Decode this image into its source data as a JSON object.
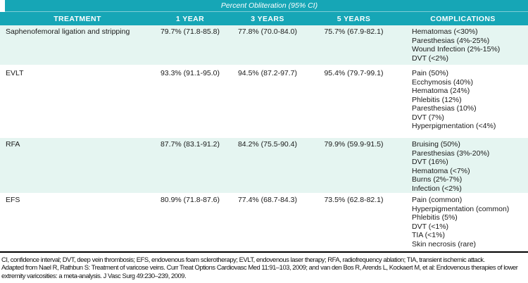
{
  "table": {
    "title": "Percent Obliteration (95% CI)",
    "columns": [
      "TREATMENT",
      "1 YEAR",
      "3 YEARS",
      "5 YEARS",
      "COMPLICATIONS"
    ],
    "rows": [
      {
        "treatment": "Saphenofemoral ligation and stripping",
        "year1": "79.7% (71.8-85.8)",
        "year3": "77.8% (70.0-84.0)",
        "year5": "75.7% (67.9-82.1)",
        "complications": [
          "Hematomas (<30%)",
          "Paresthesias (4%-25%)",
          "Wound Infection (2%-15%)",
          "DVT (<2%)"
        ]
      },
      {
        "treatment": "EVLT",
        "year1": "93.3% (91.1-95.0)",
        "year3": "94.5% (87.2-97.7)",
        "year5": "95.4% (79.7-99.1)",
        "complications": [
          "Pain (50%)",
          "Ecchymosis (40%)",
          "Hematoma (24%)",
          "Phlebitis (12%)",
          "Paresthesias (10%)",
          "DVT (7%)",
          "Hyperpigmentation (<4%)"
        ]
      },
      {
        "treatment": "RFA",
        "year1": "87.7% (83.1-91.2)",
        "year3": "84.2% (75.5-90.4)",
        "year5": "79.9% (59.9-91.5)",
        "complications": [
          "Bruising (50%)",
          "Paresthesias (3%-20%)",
          "DVT (16%)",
          "Hematoma (<7%)",
          "Burns (2%-7%)",
          "Infection (<2%)"
        ]
      },
      {
        "treatment": "EFS",
        "year1": "80.9% (71.8-87.6)",
        "year3": "77.4% (68.7-84.3)",
        "year5": "73.5% (62.8-82.1)",
        "complications": [
          "Pain (common)",
          "Hyperpigmentation (common)",
          "Phlebitis (5%)",
          "DVT (<1%)",
          "TIA (<1%)",
          "Skin necrosis (rare)"
        ]
      }
    ]
  },
  "footnotes": {
    "lines": [
      "CI, confidence interval; DVT, deep vein thrombosis; EFS, endovenous foam sclerotherapy; EVLT, endovenous laser therapy; RFA, radiofrequency ablation; TIA, transient ischemic attack.",
      "Adapted from Nael R, Rathbun S: Treatment of varicose veins. Curr Treat Options Cardiovasc Med 11:91–103, 2009; and van den Bos R, Arends L, Kockaert M, et al: Endovenous therapies of lower",
      "extremity varicosities: a meta-analysis. J Vasc Surg 49:230–239, 2009."
    ]
  },
  "colors": {
    "header_teal": "#16a6b6",
    "row_alt": "#e5f5f1"
  }
}
